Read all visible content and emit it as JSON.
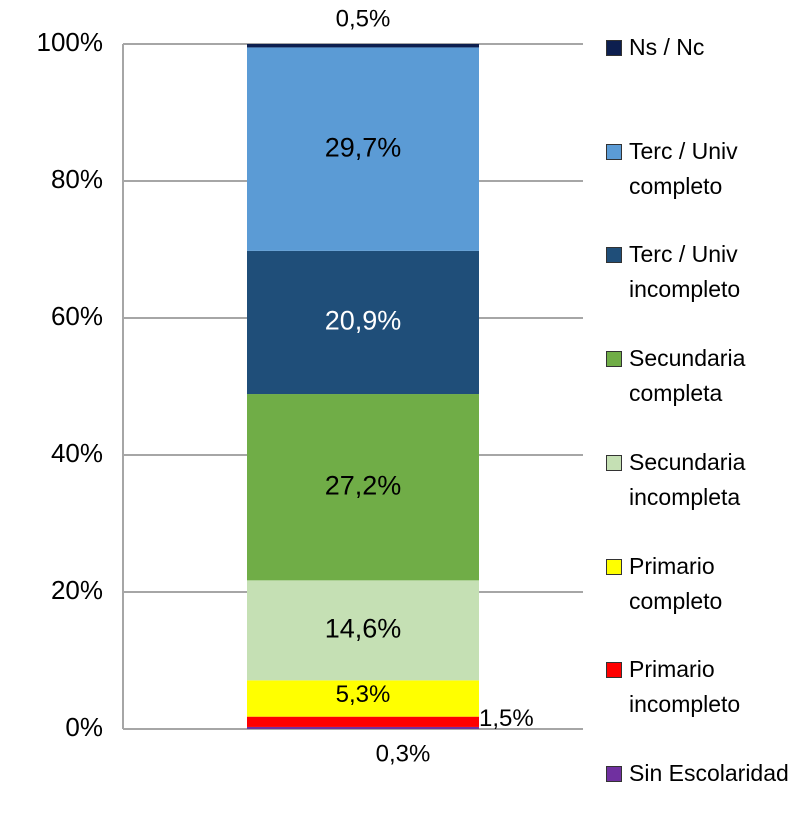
{
  "chart_data": {
    "type": "stacked_bar",
    "categories": [
      null
    ],
    "ylim": [
      0,
      100
    ],
    "yticks": [
      {
        "value": 0,
        "label": "0%"
      },
      {
        "value": 20,
        "label": "20%"
      },
      {
        "value": 40,
        "label": "40%"
      },
      {
        "value": 60,
        "label": "60%"
      },
      {
        "value": 80,
        "label": "80%"
      },
      {
        "value": 100,
        "label": "100%"
      }
    ],
    "grid": true,
    "legend": "right",
    "series": [
      {
        "name": "Sin Escolaridad",
        "color": "#7030a0",
        "label_color": "#000000",
        "values": [
          0.3
        ],
        "value_labels": [
          "0,3%"
        ]
      },
      {
        "name": "Primario incompleto",
        "color": "#ff0000",
        "label_color": "#000000",
        "values": [
          1.5
        ],
        "value_labels": [
          "1,5%"
        ]
      },
      {
        "name": "Primario completo",
        "color": "#ffff00",
        "label_color": "#000000",
        "values": [
          5.3
        ],
        "value_labels": [
          "5,3%"
        ]
      },
      {
        "name": "Secundaria incompleta",
        "color": "#c5e0b4",
        "label_color": "#000000",
        "values": [
          14.6
        ],
        "value_labels": [
          "14,6%"
        ]
      },
      {
        "name": "Secundaria completa",
        "color": "#70ad47",
        "label_color": "#000000",
        "values": [
          27.2
        ],
        "value_labels": [
          "27,2%"
        ]
      },
      {
        "name": "Terc / Univ incompleto",
        "color": "#1f4e79",
        "label_color": "#ffffff",
        "values": [
          20.9
        ],
        "value_labels": [
          "20,9%"
        ]
      },
      {
        "name": "Terc / Univ completo",
        "color": "#5b9bd5",
        "label_color": "#000000",
        "values": [
          29.7
        ],
        "value_labels": [
          "29,7%"
        ]
      },
      {
        "name": "Ns / Nc",
        "color": "#0d1f4f",
        "label_color": "#000000",
        "values": [
          0.5
        ],
        "value_labels": [
          "0,5%"
        ]
      }
    ]
  }
}
